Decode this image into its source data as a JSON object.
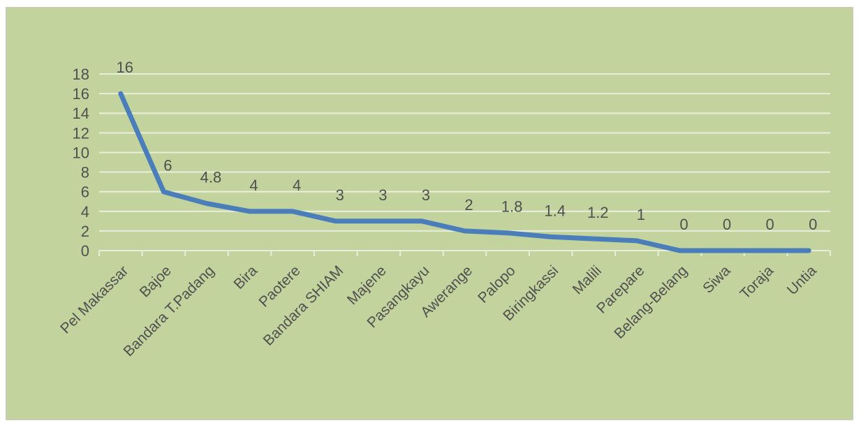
{
  "chart_data": {
    "type": "line",
    "title": "",
    "xlabel": "",
    "ylabel": "",
    "ylim": [
      0,
      18
    ],
    "yticks": [
      0,
      2,
      4,
      6,
      8,
      10,
      12,
      14,
      16,
      18
    ],
    "grid": true,
    "legend": "none",
    "categories": [
      "Pel Makassar",
      "Bajoe",
      "Bandara T.Padang",
      "Bira",
      "Paotere",
      "Bandara SHIAM",
      "Majene",
      "Pasangkayu",
      "Awerange",
      "Palopo",
      "Biringkassi",
      "Malili",
      "Parepare",
      "Belang-Belang",
      "Siwa",
      "Toraja",
      "Untia"
    ],
    "values": [
      16,
      6,
      4.8,
      4,
      4,
      3,
      3,
      3,
      2,
      1.8,
      1.4,
      1.2,
      1,
      0,
      0,
      0,
      0
    ],
    "data_labels": [
      "16",
      "6",
      "4.8",
      "4",
      "4",
      "3",
      "3",
      "3",
      "2",
      "1.8",
      "1.4",
      "1.2",
      "1",
      "0",
      "0",
      "0",
      "0"
    ]
  },
  "colors": {
    "background": "#c3d39d",
    "line": "#4a7ebb",
    "grid": "#e9eedb",
    "text": "#505050"
  }
}
